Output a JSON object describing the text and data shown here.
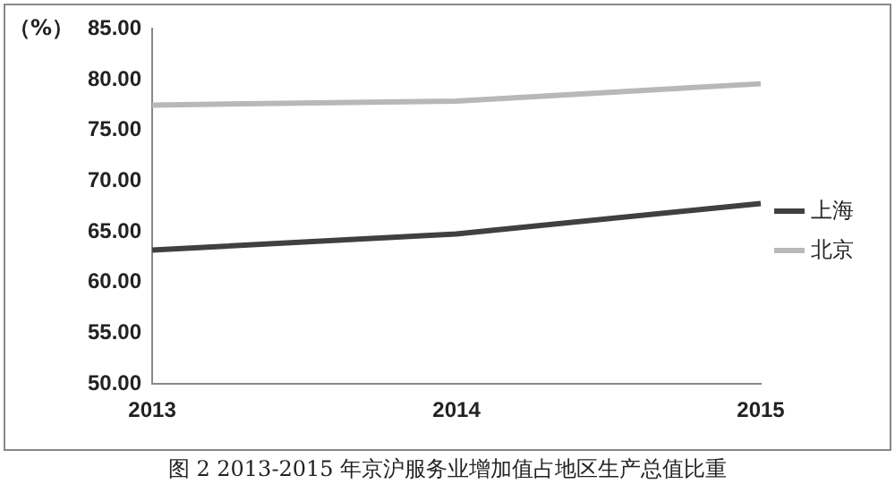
{
  "chart_data": {
    "type": "line",
    "title": "图 2 2013-2015 年京沪服务业增加值占地区生产总值比重",
    "ylabel": "（%）",
    "categories": [
      "2013",
      "2014",
      "2015"
    ],
    "series": [
      {
        "name": "上海",
        "color": "#404040",
        "values": [
          63.2,
          64.8,
          67.8
        ]
      },
      {
        "name": "北京",
        "color": "#b8b8b8",
        "values": [
          77.5,
          77.9,
          79.6
        ]
      }
    ],
    "ylim": [
      50,
      85
    ],
    "yticks": [
      {
        "value": 50,
        "label": "50.00"
      },
      {
        "value": 55,
        "label": "55.00"
      },
      {
        "value": 60,
        "label": "60.00"
      },
      {
        "value": 65,
        "label": "65.00"
      },
      {
        "value": 70,
        "label": "70.00"
      },
      {
        "value": 75,
        "label": "75.00"
      },
      {
        "value": 80,
        "label": "80.00"
      },
      {
        "value": 85,
        "label": "85.00"
      }
    ],
    "grid": false,
    "legend": "right",
    "marker": "none",
    "line_style": "solid"
  }
}
